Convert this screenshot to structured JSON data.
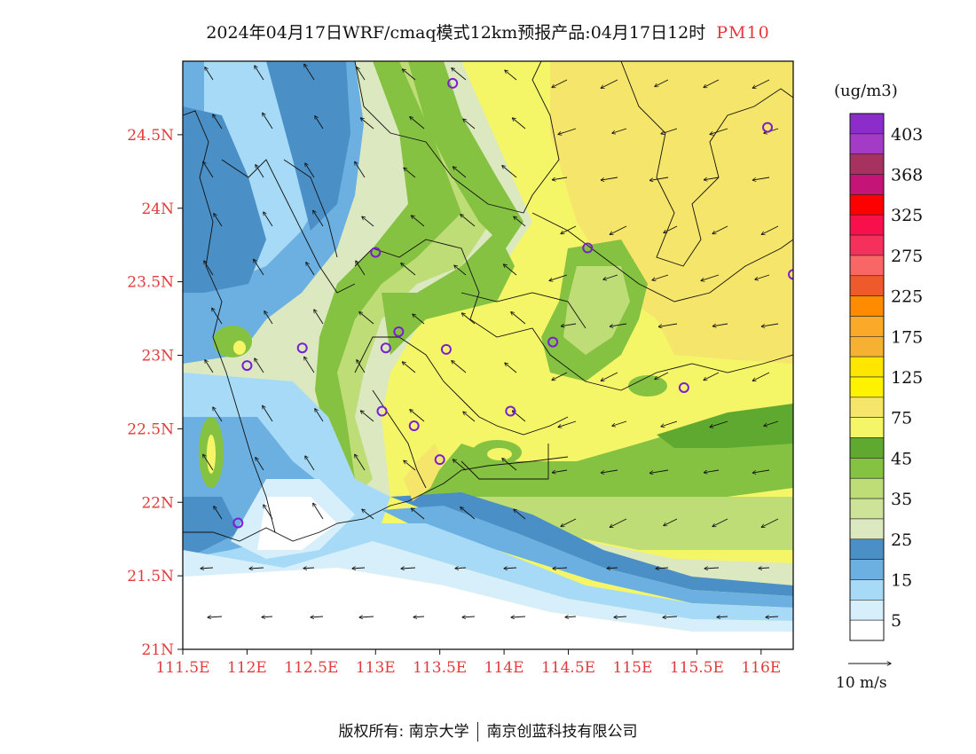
{
  "title": {
    "text": "2024年04月17日WRF/cmaq模式12km预报产品:04月17日12时",
    "pollutant": "PM10"
  },
  "axes": {
    "lat_labels": [
      "24.5N",
      "24N",
      "23.5N",
      "23N",
      "22.5N",
      "22N",
      "21.5N",
      "21N"
    ],
    "lat_values": [
      24.5,
      24.0,
      23.5,
      23.0,
      22.5,
      22.0,
      21.5,
      21.0
    ],
    "lon_labels": [
      "111.5E",
      "112E",
      "112.5E",
      "113E",
      "113.5E",
      "114E",
      "114.5E",
      "115E",
      "115.5E",
      "116E"
    ],
    "lon_values": [
      111.5,
      112.0,
      112.5,
      113.0,
      113.5,
      114.0,
      114.5,
      115.0,
      115.5,
      116.0
    ],
    "lon_range": [
      111.5,
      116.25
    ],
    "lat_range": [
      21.0,
      25.0
    ],
    "label_color": "#e33b3b"
  },
  "colorbar": {
    "unit": "(ug/m3)",
    "labels": [
      "403",
      "368",
      "325",
      "275",
      "225",
      "175",
      "125",
      "75",
      "45",
      "35",
      "25",
      "15",
      "5"
    ],
    "colors_top_to_bottom": [
      "#8c2ccb",
      "#a33bc7",
      "#a8325f",
      "#c41478",
      "#ff0000",
      "#f8104d",
      "#f5305a",
      "#f96666",
      "#ee5a2c",
      "#ff8c00",
      "#fba929",
      "#f6b133",
      "#ffe600",
      "#fff200",
      "#f5e56a",
      "#f4f668",
      "#5fa931",
      "#86c241",
      "#bedd76",
      "#cde398",
      "#dbe8c0",
      "#4a8fc6",
      "#6bb0e0",
      "#a6daf6",
      "#d7effa",
      "#ffffff"
    ]
  },
  "field_colors": {
    "white": "#ffffff",
    "light_blue": "#d7effa",
    "sky_blue": "#a6daf6",
    "mid_blue": "#6bb0e0",
    "deep_blue": "#4a8fc6",
    "pale_green": "#dbe8c0",
    "light_green": "#bedd76",
    "green": "#86c241",
    "dark_green": "#5fa931",
    "yellow": "#f4f668",
    "yellow_orange": "#f5e56a"
  },
  "stations": [
    {
      "lon": 113.6,
      "lat": 24.85
    },
    {
      "lon": 116.05,
      "lat": 24.55
    },
    {
      "lon": 113.0,
      "lat": 23.7
    },
    {
      "lon": 114.65,
      "lat": 23.73
    },
    {
      "lon": 116.25,
      "lat": 23.55
    },
    {
      "lon": 112.43,
      "lat": 23.05
    },
    {
      "lon": 113.18,
      "lat": 23.16
    },
    {
      "lon": 113.08,
      "lat": 23.05
    },
    {
      "lon": 113.55,
      "lat": 23.04
    },
    {
      "lon": 114.38,
      "lat": 23.09
    },
    {
      "lon": 112.0,
      "lat": 22.93
    },
    {
      "lon": 115.4,
      "lat": 22.78
    },
    {
      "lon": 113.05,
      "lat": 22.62
    },
    {
      "lon": 113.3,
      "lat": 22.52
    },
    {
      "lon": 114.05,
      "lat": 22.62
    },
    {
      "lon": 113.5,
      "lat": 22.29
    },
    {
      "lon": 111.93,
      "lat": 21.86
    }
  ],
  "wind": {
    "reference_label": "10 m/s"
  },
  "footer": {
    "copyright_prefix": "版权所有:",
    "org1": "南京大学",
    "org2": "南京创蓝科技有限公司"
  }
}
